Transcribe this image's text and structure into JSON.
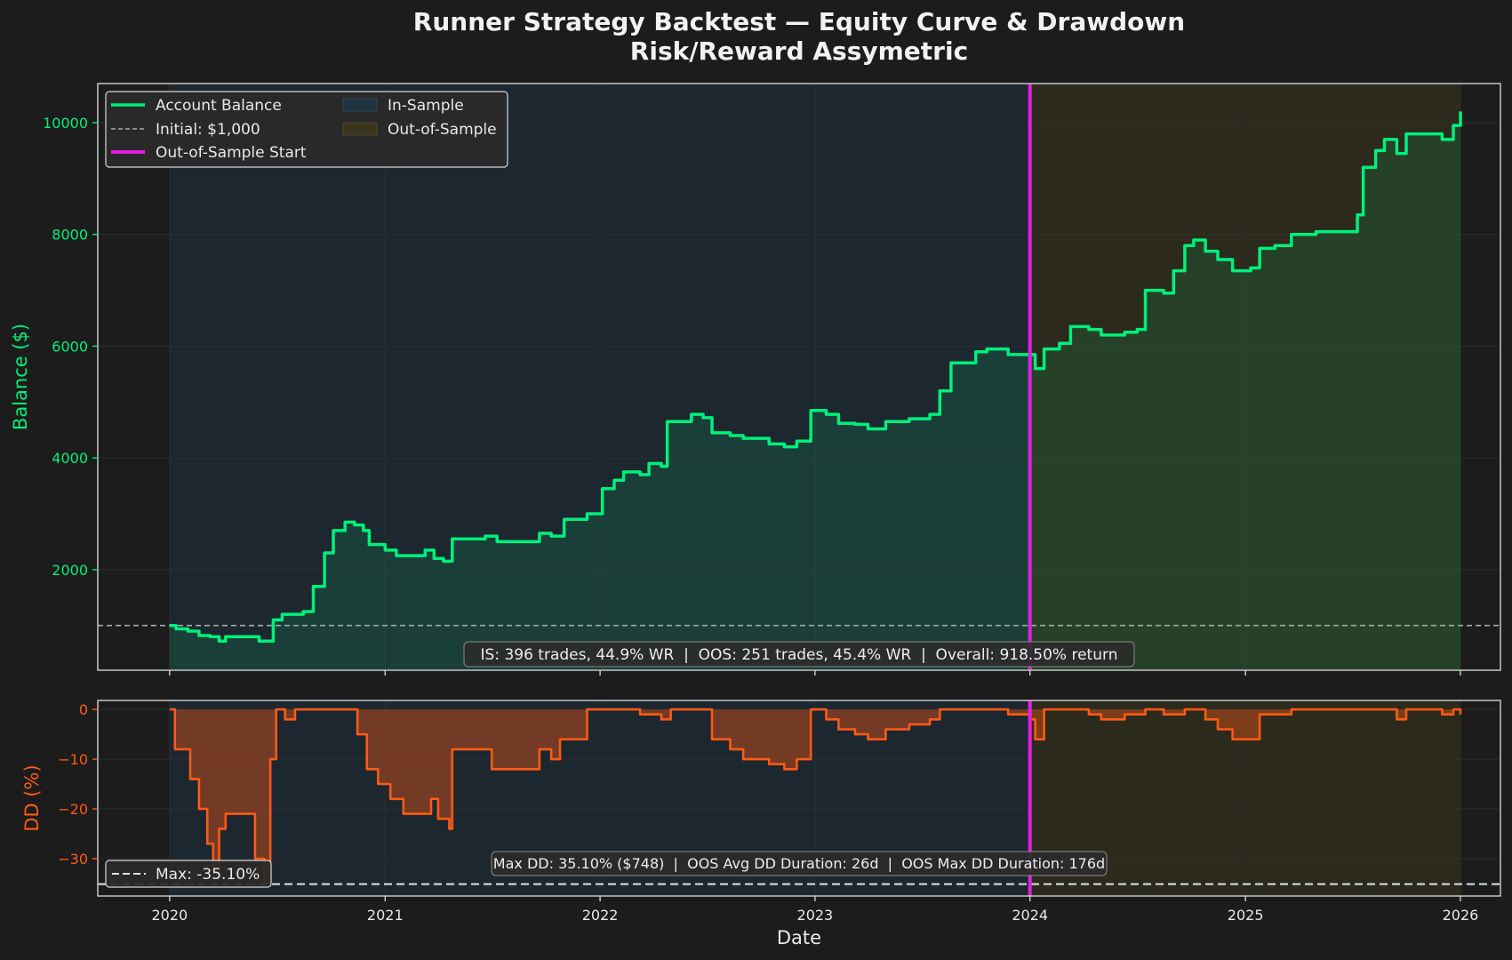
{
  "title": "Runner Strategy Backtest — Equity Curve & Drawdown",
  "subtitle": "Risk/Reward Assymetric",
  "colors": {
    "background": "#1c1c1c",
    "equity": "#00f07a",
    "drawdown": "#ff5a14",
    "oos_line": "#e61ee6",
    "in_sample_fill": "#1f3240",
    "out_sample_fill": "#33301d",
    "axis_spine": "#cfcfcf",
    "grid": "#2e2e2e"
  },
  "chart_data": [
    {
      "type": "line",
      "xlabel": "",
      "ylabel": "Balance ($)",
      "xlim": [
        "2019-09-01",
        "2026-03-10"
      ],
      "ylim": [
        200,
        10700
      ],
      "yticks": [
        2000,
        4000,
        6000,
        8000,
        10000
      ],
      "xticks": [
        "2020",
        "2021",
        "2022",
        "2023",
        "2024",
        "2025",
        "2026"
      ],
      "grid": true,
      "initial_balance": 1000,
      "oos_start": "2024-01-01",
      "regions": [
        {
          "name": "In-Sample",
          "start": "2020-01-01",
          "end": "2024-01-01"
        },
        {
          "name": "Out-of-Sample",
          "start": "2024-01-01",
          "end": "2026-01-01"
        }
      ],
      "legend": {
        "position": "top-left",
        "entries": [
          "Account Balance",
          "Initial: $1,000",
          "Out-of-Sample Start",
          "In-Sample",
          "Out-of-Sample"
        ]
      },
      "annotation": "IS: 396 trades, 44.9% WR  |  OOS: 251 trades, 45.4% WR  |  Overall: 918.50% return",
      "series": [
        {
          "name": "Account Balance",
          "points": [
            [
              "2020-01-01",
              1000
            ],
            [
              "2020-01-12",
              940
            ],
            [
              "2020-02-01",
              900
            ],
            [
              "2020-02-20",
              820
            ],
            [
              "2020-03-10",
              800
            ],
            [
              "2020-03-25",
              720
            ],
            [
              "2020-04-05",
              800
            ],
            [
              "2020-05-20",
              800
            ],
            [
              "2020-06-01",
              720
            ],
            [
              "2020-06-15",
              720
            ],
            [
              "2020-06-25",
              1100
            ],
            [
              "2020-07-10",
              1200
            ],
            [
              "2020-08-15",
              1250
            ],
            [
              "2020-09-01",
              1700
            ],
            [
              "2020-09-20",
              2300
            ],
            [
              "2020-10-05",
              2700
            ],
            [
              "2020-10-25",
              2850
            ],
            [
              "2020-11-10",
              2800
            ],
            [
              "2020-11-25",
              2700
            ],
            [
              "2020-12-05",
              2450
            ],
            [
              "2021-01-01",
              2350
            ],
            [
              "2021-01-20",
              2250
            ],
            [
              "2021-02-20",
              2250
            ],
            [
              "2021-03-10",
              2350
            ],
            [
              "2021-03-25",
              2200
            ],
            [
              "2021-04-10",
              2150
            ],
            [
              "2021-04-25",
              2550
            ],
            [
              "2021-06-20",
              2600
            ],
            [
              "2021-07-10",
              2500
            ],
            [
              "2021-09-10",
              2500
            ],
            [
              "2021-09-20",
              2650
            ],
            [
              "2021-10-10",
              2600
            ],
            [
              "2021-11-01",
              2900
            ],
            [
              "2021-12-10",
              3000
            ],
            [
              "2022-01-05",
              3450
            ],
            [
              "2022-01-25",
              3600
            ],
            [
              "2022-02-10",
              3750
            ],
            [
              "2022-03-10",
              3700
            ],
            [
              "2022-03-25",
              3900
            ],
            [
              "2022-04-15",
              3850
            ],
            [
              "2022-04-25",
              4650
            ],
            [
              "2022-05-20",
              4650
            ],
            [
              "2022-06-05",
              4780
            ],
            [
              "2022-06-25",
              4720
            ],
            [
              "2022-07-10",
              4450
            ],
            [
              "2022-08-10",
              4400
            ],
            [
              "2022-09-01",
              4350
            ],
            [
              "2022-10-15",
              4250
            ],
            [
              "2022-11-10",
              4200
            ],
            [
              "2022-12-01",
              4300
            ],
            [
              "2022-12-25",
              4850
            ],
            [
              "2023-01-20",
              4780
            ],
            [
              "2023-02-10",
              4620
            ],
            [
              "2023-03-10",
              4600
            ],
            [
              "2023-04-01",
              4520
            ],
            [
              "2023-05-01",
              4650
            ],
            [
              "2023-06-10",
              4700
            ],
            [
              "2023-07-15",
              4780
            ],
            [
              "2023-08-01",
              5200
            ],
            [
              "2023-08-20",
              5700
            ],
            [
              "2023-09-15",
              5700
            ],
            [
              "2023-10-01",
              5900
            ],
            [
              "2023-10-20",
              5950
            ],
            [
              "2023-11-10",
              5950
            ],
            [
              "2023-11-25",
              5850
            ],
            [
              "2023-12-31",
              5850
            ],
            [
              "2024-01-10",
              5600
            ],
            [
              "2024-01-25",
              5950
            ],
            [
              "2024-02-20",
              6050
            ],
            [
              "2024-03-10",
              6350
            ],
            [
              "2024-04-10",
              6300
            ],
            [
              "2024-05-01",
              6200
            ],
            [
              "2024-06-10",
              6250
            ],
            [
              "2024-07-01",
              6300
            ],
            [
              "2024-07-15",
              7000
            ],
            [
              "2024-08-15",
              6950
            ],
            [
              "2024-09-01",
              7350
            ],
            [
              "2024-09-20",
              7800
            ],
            [
              "2024-10-05",
              7900
            ],
            [
              "2024-10-25",
              7700
            ],
            [
              "2024-11-15",
              7550
            ],
            [
              "2024-12-10",
              7350
            ],
            [
              "2025-01-10",
              7400
            ],
            [
              "2025-01-25",
              7750
            ],
            [
              "2025-02-20",
              7800
            ],
            [
              "2025-03-20",
              8000
            ],
            [
              "2025-05-01",
              8050
            ],
            [
              "2025-06-20",
              8050
            ],
            [
              "2025-07-10",
              8350
            ],
            [
              "2025-07-20",
              9200
            ],
            [
              "2025-08-10",
              9500
            ],
            [
              "2025-08-25",
              9700
            ],
            [
              "2025-09-15",
              9450
            ],
            [
              "2025-10-01",
              9800
            ],
            [
              "2025-11-10",
              9800
            ],
            [
              "2025-12-01",
              9700
            ],
            [
              "2025-12-20",
              9950
            ],
            [
              "2026-01-01",
              10200
            ]
          ]
        }
      ]
    },
    {
      "type": "area",
      "xlabel": "Date",
      "ylabel": "DD (%)",
      "xlim": [
        "2019-09-01",
        "2026-03-10"
      ],
      "ylim": [
        -37.5,
        1.8
      ],
      "yticks": [
        0,
        -10,
        -20,
        -30
      ],
      "xticks": [
        "2020",
        "2021",
        "2022",
        "2023",
        "2024",
        "2025",
        "2026"
      ],
      "grid": true,
      "max_dd": -35.1,
      "legend": {
        "position": "bottom-left",
        "entries": [
          "Max: -35.10%"
        ]
      },
      "annotation": "Max DD: 35.10% ($748)  |  OOS Avg DD Duration: 26d  |  OOS Max DD Duration: 176d",
      "series": [
        {
          "name": "Drawdown",
          "points": [
            [
              "2020-01-01",
              0
            ],
            [
              "2020-01-10",
              -8
            ],
            [
              "2020-02-05",
              -14
            ],
            [
              "2020-02-20",
              -20
            ],
            [
              "2020-03-05",
              -27
            ],
            [
              "2020-03-15",
              -33
            ],
            [
              "2020-03-25",
              -24
            ],
            [
              "2020-04-05",
              -21
            ],
            [
              "2020-05-15",
              -21
            ],
            [
              "2020-05-25",
              -30
            ],
            [
              "2020-06-10",
              -35
            ],
            [
              "2020-06-20",
              -10
            ],
            [
              "2020-06-30",
              0
            ],
            [
              "2020-07-15",
              -2
            ],
            [
              "2020-08-01",
              0
            ],
            [
              "2020-10-30",
              0
            ],
            [
              "2020-11-15",
              -5
            ],
            [
              "2020-12-01",
              -12
            ],
            [
              "2020-12-20",
              -15
            ],
            [
              "2021-01-10",
              -18
            ],
            [
              "2021-02-01",
              -21
            ],
            [
              "2021-03-01",
              -21
            ],
            [
              "2021-03-20",
              -18
            ],
            [
              "2021-04-01",
              -22
            ],
            [
              "2021-04-20",
              -24
            ],
            [
              "2021-04-25",
              -8
            ],
            [
              "2021-05-15",
              -8
            ],
            [
              "2021-06-20",
              -8
            ],
            [
              "2021-07-01",
              -12
            ],
            [
              "2021-08-15",
              -12
            ],
            [
              "2021-09-10",
              -12
            ],
            [
              "2021-09-20",
              -8
            ],
            [
              "2021-10-10",
              -10
            ],
            [
              "2021-10-25",
              -6
            ],
            [
              "2021-11-20",
              -6
            ],
            [
              "2021-12-10",
              0
            ],
            [
              "2022-02-10",
              0
            ],
            [
              "2022-03-10",
              -1
            ],
            [
              "2022-04-15",
              -2
            ],
            [
              "2022-05-01",
              0
            ],
            [
              "2022-06-05",
              0
            ],
            [
              "2022-07-10",
              -6
            ],
            [
              "2022-08-10",
              -8
            ],
            [
              "2022-09-01",
              -10
            ],
            [
              "2022-10-15",
              -11
            ],
            [
              "2022-11-10",
              -12
            ],
            [
              "2022-12-01",
              -10
            ],
            [
              "2022-12-25",
              0
            ],
            [
              "2023-01-20",
              -2
            ],
            [
              "2023-02-10",
              -4
            ],
            [
              "2023-03-10",
              -5
            ],
            [
              "2023-04-01",
              -6
            ],
            [
              "2023-05-01",
              -4
            ],
            [
              "2023-06-10",
              -3
            ],
            [
              "2023-07-15",
              -2
            ],
            [
              "2023-08-01",
              0
            ],
            [
              "2023-10-20",
              0
            ],
            [
              "2023-11-25",
              -1
            ],
            [
              "2023-12-31",
              -2
            ],
            [
              "2024-01-10",
              -6
            ],
            [
              "2024-01-25",
              0
            ],
            [
              "2024-03-10",
              0
            ],
            [
              "2024-04-10",
              -1
            ],
            [
              "2024-05-01",
              -2
            ],
            [
              "2024-06-10",
              -1
            ],
            [
              "2024-07-15",
              0
            ],
            [
              "2024-08-15",
              -1
            ],
            [
              "2024-09-20",
              0
            ],
            [
              "2024-10-05",
              0
            ],
            [
              "2024-10-25",
              -2
            ],
            [
              "2024-11-15",
              -4
            ],
            [
              "2024-12-10",
              -6
            ],
            [
              "2025-01-10",
              -6
            ],
            [
              "2025-01-25",
              -1
            ],
            [
              "2025-03-20",
              0
            ],
            [
              "2025-07-10",
              0
            ],
            [
              "2025-08-25",
              0
            ],
            [
              "2025-09-15",
              -2
            ],
            [
              "2025-10-01",
              0
            ],
            [
              "2025-12-01",
              -1
            ],
            [
              "2025-12-20",
              0
            ],
            [
              "2026-01-01",
              -1
            ]
          ]
        }
      ]
    }
  ]
}
